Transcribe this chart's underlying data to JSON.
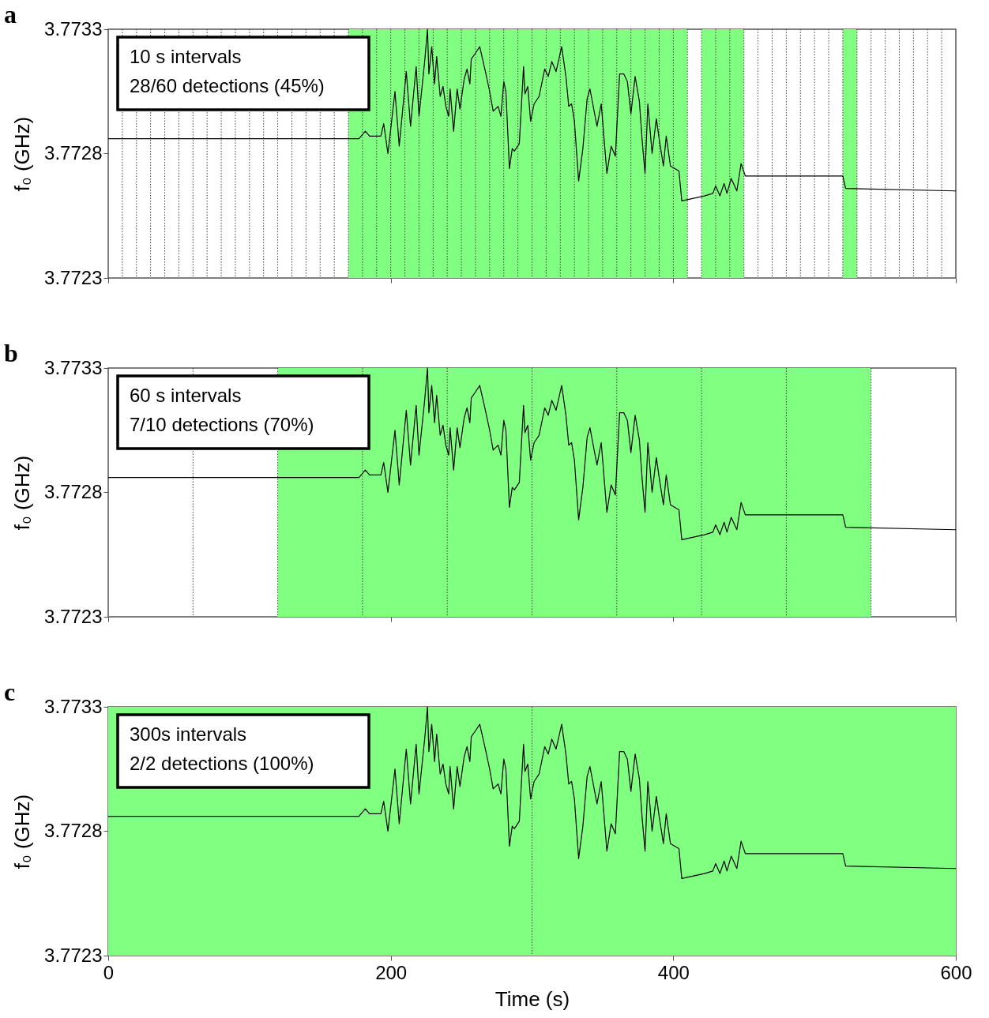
{
  "chart_data": [
    {
      "type": "line",
      "title": "a",
      "ylabel": "f₀ (GHz)",
      "xlabel": null,
      "tick_labels": "y",
      "annotations": [
        "10 s intervals",
        "28/60 detections (45%)"
      ],
      "xlim": [
        0,
        600
      ],
      "xticks": [
        0,
        200,
        400,
        600
      ],
      "ylim": [
        3.7723,
        3.7733
      ],
      "yticks": [
        3.7723,
        3.7728,
        3.7733
      ],
      "x": [
        0,
        60,
        120,
        164,
        177.5,
        182,
        185,
        193,
        195,
        198,
        203,
        206,
        211,
        214,
        218,
        220,
        224,
        226,
        227,
        229,
        231,
        232.5,
        235,
        237,
        239,
        241,
        242,
        244.5,
        247,
        249,
        252,
        254,
        256,
        257,
        259.5,
        263,
        265,
        267,
        270,
        272.5,
        276,
        278,
        280,
        281.5,
        284,
        286,
        287.5,
        291,
        294,
        295,
        297,
        299,
        301.5,
        305,
        309,
        311.5,
        314,
        317,
        321,
        324,
        326,
        328,
        330,
        333,
        336,
        339,
        341,
        343,
        346,
        349,
        353,
        356,
        359,
        362,
        365,
        367.5,
        370,
        373,
        376,
        378,
        380,
        382,
        385,
        388,
        390,
        393,
        395,
        398,
        404,
        406,
        422,
        428,
        430,
        433,
        436,
        438,
        441,
        445,
        448,
        451,
        520,
        522,
        600
      ],
      "series": [
        {
          "color": "#000000",
          "values": [
            3.77286,
            3.77286,
            3.77286,
            3.77286,
            3.77286,
            3.77289,
            3.77287,
            3.77287,
            3.77292,
            3.7728,
            3.77305,
            3.77283,
            3.77313,
            3.77291,
            3.77315,
            3.77295,
            3.77317,
            3.7733,
            3.77312,
            3.77323,
            3.77308,
            3.77319,
            3.77303,
            3.77307,
            3.77299,
            3.77295,
            3.77306,
            3.77289,
            3.77306,
            3.77298,
            3.7731,
            3.77314,
            3.77308,
            3.77318,
            3.7732,
            3.77323,
            3.77318,
            3.77313,
            3.77305,
            3.77297,
            3.77299,
            3.77295,
            3.77309,
            3.77305,
            3.77274,
            3.77282,
            3.77281,
            3.77284,
            3.77315,
            3.77304,
            3.77307,
            3.77293,
            3.773,
            3.77303,
            3.77314,
            3.77311,
            3.77317,
            3.77313,
            3.77323,
            3.77311,
            3.77299,
            3.773,
            3.77293,
            3.77269,
            3.77282,
            3.77302,
            3.77306,
            3.773,
            3.77291,
            3.773,
            3.77272,
            3.77283,
            3.77279,
            3.77312,
            3.77312,
            3.77309,
            3.77296,
            3.77311,
            3.77301,
            3.77285,
            3.77272,
            3.773,
            3.7728,
            3.77294,
            3.77286,
            3.77275,
            3.77287,
            3.77275,
            3.77273,
            3.77261,
            3.77263,
            3.77264,
            3.77267,
            3.77263,
            3.77268,
            3.77264,
            3.7727,
            3.77265,
            3.77276,
            3.77271,
            3.77271,
            3.77266,
            3.77265
          ]
        }
      ],
      "bands": [
        {
          "axis": "x",
          "from": 170,
          "to": 410,
          "color": "#80ff80"
        },
        {
          "axis": "x",
          "from": 420,
          "to": 450,
          "color": "#80ff80"
        },
        {
          "axis": "x",
          "from": 520,
          "to": 530,
          "color": "#80ff80"
        }
      ],
      "ref_lines": [
        {
          "axis": "x",
          "value": 10,
          "color": "#404040",
          "line_style": "dotted"
        },
        {
          "axis": "x",
          "value": 20,
          "color": "#404040",
          "line_style": "dotted"
        },
        {
          "axis": "x",
          "value": 30,
          "color": "#404040",
          "line_style": "dotted"
        },
        {
          "axis": "x",
          "value": 40,
          "color": "#404040",
          "line_style": "dotted"
        },
        {
          "axis": "x",
          "value": 50,
          "color": "#404040",
          "line_style": "dotted"
        },
        {
          "axis": "x",
          "value": 60,
          "color": "#404040",
          "line_style": "dotted"
        },
        {
          "axis": "x",
          "value": 70,
          "color": "#404040",
          "line_style": "dotted"
        },
        {
          "axis": "x",
          "value": 80,
          "color": "#404040",
          "line_style": "dotted"
        },
        {
          "axis": "x",
          "value": 90,
          "color": "#404040",
          "line_style": "dotted"
        },
        {
          "axis": "x",
          "value": 100,
          "color": "#404040",
          "line_style": "dotted"
        },
        {
          "axis": "x",
          "value": 110,
          "color": "#404040",
          "line_style": "dotted"
        },
        {
          "axis": "x",
          "value": 120,
          "color": "#404040",
          "line_style": "dotted"
        },
        {
          "axis": "x",
          "value": 130,
          "color": "#404040",
          "line_style": "dotted"
        },
        {
          "axis": "x",
          "value": 140,
          "color": "#404040",
          "line_style": "dotted"
        },
        {
          "axis": "x",
          "value": 150,
          "color": "#404040",
          "line_style": "dotted"
        },
        {
          "axis": "x",
          "value": 160,
          "color": "#404040",
          "line_style": "dotted"
        },
        {
          "axis": "x",
          "value": 170,
          "color": "#404040",
          "line_style": "dotted"
        },
        {
          "axis": "x",
          "value": 180,
          "color": "#404040",
          "line_style": "dotted"
        },
        {
          "axis": "x",
          "value": 190,
          "color": "#404040",
          "line_style": "dotted"
        },
        {
          "axis": "x",
          "value": 200,
          "color": "#404040",
          "line_style": "dotted"
        },
        {
          "axis": "x",
          "value": 210,
          "color": "#404040",
          "line_style": "dotted"
        },
        {
          "axis": "x",
          "value": 220,
          "color": "#404040",
          "line_style": "dotted"
        },
        {
          "axis": "x",
          "value": 230,
          "color": "#404040",
          "line_style": "dotted"
        },
        {
          "axis": "x",
          "value": 240,
          "color": "#404040",
          "line_style": "dotted"
        },
        {
          "axis": "x",
          "value": 250,
          "color": "#404040",
          "line_style": "dotted"
        },
        {
          "axis": "x",
          "value": 260,
          "color": "#404040",
          "line_style": "dotted"
        },
        {
          "axis": "x",
          "value": 270,
          "color": "#404040",
          "line_style": "dotted"
        },
        {
          "axis": "x",
          "value": 280,
          "color": "#404040",
          "line_style": "dotted"
        },
        {
          "axis": "x",
          "value": 290,
          "color": "#404040",
          "line_style": "dotted"
        },
        {
          "axis": "x",
          "value": 300,
          "color": "#404040",
          "line_style": "dotted"
        },
        {
          "axis": "x",
          "value": 310,
          "color": "#404040",
          "line_style": "dotted"
        },
        {
          "axis": "x",
          "value": 320,
          "color": "#404040",
          "line_style": "dotted"
        },
        {
          "axis": "x",
          "value": 330,
          "color": "#404040",
          "line_style": "dotted"
        },
        {
          "axis": "x",
          "value": 340,
          "color": "#404040",
          "line_style": "dotted"
        },
        {
          "axis": "x",
          "value": 350,
          "color": "#404040",
          "line_style": "dotted"
        },
        {
          "axis": "x",
          "value": 360,
          "color": "#404040",
          "line_style": "dotted"
        },
        {
          "axis": "x",
          "value": 370,
          "color": "#404040",
          "line_style": "dotted"
        },
        {
          "axis": "x",
          "value": 380,
          "color": "#404040",
          "line_style": "dotted"
        },
        {
          "axis": "x",
          "value": 390,
          "color": "#404040",
          "line_style": "dotted"
        },
        {
          "axis": "x",
          "value": 400,
          "color": "#404040",
          "line_style": "dotted"
        },
        {
          "axis": "x",
          "value": 410,
          "color": "#404040",
          "line_style": "dotted"
        },
        {
          "axis": "x",
          "value": 420,
          "color": "#404040",
          "line_style": "dotted"
        },
        {
          "axis": "x",
          "value": 430,
          "color": "#404040",
          "line_style": "dotted"
        },
        {
          "axis": "x",
          "value": 440,
          "color": "#404040",
          "line_style": "dotted"
        },
        {
          "axis": "x",
          "value": 450,
          "color": "#404040",
          "line_style": "dotted"
        },
        {
          "axis": "x",
          "value": 460,
          "color": "#404040",
          "line_style": "dotted"
        },
        {
          "axis": "x",
          "value": 470,
          "color": "#404040",
          "line_style": "dotted"
        },
        {
          "axis": "x",
          "value": 480,
          "color": "#404040",
          "line_style": "dotted"
        },
        {
          "axis": "x",
          "value": 490,
          "color": "#404040",
          "line_style": "dotted"
        },
        {
          "axis": "x",
          "value": 500,
          "color": "#404040",
          "line_style": "dotted"
        },
        {
          "axis": "x",
          "value": 510,
          "color": "#404040",
          "line_style": "dotted"
        },
        {
          "axis": "x",
          "value": 520,
          "color": "#404040",
          "line_style": "dotted"
        },
        {
          "axis": "x",
          "value": 530,
          "color": "#404040",
          "line_style": "dotted"
        },
        {
          "axis": "x",
          "value": 540,
          "color": "#404040",
          "line_style": "dotted"
        },
        {
          "axis": "x",
          "value": 550,
          "color": "#404040",
          "line_style": "dotted"
        },
        {
          "axis": "x",
          "value": 560,
          "color": "#404040",
          "line_style": "dotted"
        },
        {
          "axis": "x",
          "value": 570,
          "color": "#404040",
          "line_style": "dotted"
        },
        {
          "axis": "x",
          "value": 580,
          "color": "#404040",
          "line_style": "dotted"
        },
        {
          "axis": "x",
          "value": 590,
          "color": "#404040",
          "line_style": "dotted"
        }
      ]
    },
    {
      "type": "line",
      "title": "b",
      "ylabel": "f₀ (GHz)",
      "xlabel": null,
      "tick_labels": "y",
      "annotations": [
        "60 s intervals",
        "7/10 detections (70%)"
      ],
      "xlim": [
        0,
        600
      ],
      "xticks": [
        0,
        200,
        400,
        600
      ],
      "ylim": [
        3.7723,
        3.7733
      ],
      "yticks": [
        3.7723,
        3.7728,
        3.7733
      ],
      "x": [
        0,
        60,
        120,
        164,
        177.5,
        182,
        185,
        193,
        195,
        198,
        203,
        206,
        211,
        214,
        218,
        220,
        224,
        226,
        227,
        229,
        231,
        232.5,
        235,
        237,
        239,
        241,
        242,
        244.5,
        247,
        249,
        252,
        254,
        256,
        257,
        259.5,
        263,
        265,
        267,
        270,
        272.5,
        276,
        278,
        280,
        281.5,
        284,
        286,
        287.5,
        291,
        294,
        295,
        297,
        299,
        301.5,
        305,
        309,
        311.5,
        314,
        317,
        321,
        324,
        326,
        328,
        330,
        333,
        336,
        339,
        341,
        343,
        346,
        349,
        353,
        356,
        359,
        362,
        365,
        367.5,
        370,
        373,
        376,
        378,
        380,
        382,
        385,
        388,
        390,
        393,
        395,
        398,
        404,
        406,
        422,
        428,
        430,
        433,
        436,
        438,
        441,
        445,
        448,
        451,
        520,
        522,
        600
      ],
      "series": [
        {
          "color": "#000000",
          "values": [
            3.77286,
            3.77286,
            3.77286,
            3.77286,
            3.77286,
            3.77289,
            3.77287,
            3.77287,
            3.77292,
            3.7728,
            3.77305,
            3.77283,
            3.77313,
            3.77291,
            3.77315,
            3.77295,
            3.77317,
            3.7733,
            3.77312,
            3.77323,
            3.77308,
            3.77319,
            3.77303,
            3.77307,
            3.77299,
            3.77295,
            3.77306,
            3.77289,
            3.77306,
            3.77298,
            3.7731,
            3.77314,
            3.77308,
            3.77318,
            3.7732,
            3.77323,
            3.77318,
            3.77313,
            3.77305,
            3.77297,
            3.77299,
            3.77295,
            3.77309,
            3.77305,
            3.77274,
            3.77282,
            3.77281,
            3.77284,
            3.77315,
            3.77304,
            3.77307,
            3.77293,
            3.773,
            3.77303,
            3.77314,
            3.77311,
            3.77317,
            3.77313,
            3.77323,
            3.77311,
            3.77299,
            3.773,
            3.77293,
            3.77269,
            3.77282,
            3.77302,
            3.77306,
            3.773,
            3.77291,
            3.773,
            3.77272,
            3.77283,
            3.77279,
            3.77312,
            3.77312,
            3.77309,
            3.77296,
            3.77311,
            3.77301,
            3.77285,
            3.77272,
            3.773,
            3.7728,
            3.77294,
            3.77286,
            3.77275,
            3.77287,
            3.77275,
            3.77273,
            3.77261,
            3.77263,
            3.77264,
            3.77267,
            3.77263,
            3.77268,
            3.77264,
            3.7727,
            3.77265,
            3.77276,
            3.77271,
            3.77271,
            3.77266,
            3.77265
          ]
        }
      ],
      "bands": [
        {
          "axis": "x",
          "from": 120,
          "to": 540,
          "color": "#80ff80"
        }
      ],
      "ref_lines": [
        {
          "axis": "x",
          "value": 60,
          "color": "#404040",
          "line_style": "dotted"
        },
        {
          "axis": "x",
          "value": 120,
          "color": "#404040",
          "line_style": "dotted"
        },
        {
          "axis": "x",
          "value": 180,
          "color": "#404040",
          "line_style": "dotted"
        },
        {
          "axis": "x",
          "value": 240,
          "color": "#404040",
          "line_style": "dotted"
        },
        {
          "axis": "x",
          "value": 300,
          "color": "#404040",
          "line_style": "dotted"
        },
        {
          "axis": "x",
          "value": 360,
          "color": "#404040",
          "line_style": "dotted"
        },
        {
          "axis": "x",
          "value": 420,
          "color": "#404040",
          "line_style": "dotted"
        },
        {
          "axis": "x",
          "value": 480,
          "color": "#404040",
          "line_style": "dotted"
        },
        {
          "axis": "x",
          "value": 540,
          "color": "#404040",
          "line_style": "dotted"
        }
      ]
    },
    {
      "type": "line",
      "title": "c",
      "ylabel": "f₀ (GHz)",
      "xlabel": "Time (s)",
      "annotations": [
        "300s intervals",
        "2/2 detections (100%)"
      ],
      "xlim": [
        0,
        600
      ],
      "xticks": [
        0,
        200,
        400,
        600
      ],
      "ylim": [
        3.7723,
        3.7733
      ],
      "yticks": [
        3.7723,
        3.7728,
        3.7733
      ],
      "x": [
        0,
        60,
        120,
        164,
        177.5,
        182,
        185,
        193,
        195,
        198,
        203,
        206,
        211,
        214,
        218,
        220,
        224,
        226,
        227,
        229,
        231,
        232.5,
        235,
        237,
        239,
        241,
        242,
        244.5,
        247,
        249,
        252,
        254,
        256,
        257,
        259.5,
        263,
        265,
        267,
        270,
        272.5,
        276,
        278,
        280,
        281.5,
        284,
        286,
        287.5,
        291,
        294,
        295,
        297,
        299,
        301.5,
        305,
        309,
        311.5,
        314,
        317,
        321,
        324,
        326,
        328,
        330,
        333,
        336,
        339,
        341,
        343,
        346,
        349,
        353,
        356,
        359,
        362,
        365,
        367.5,
        370,
        373,
        376,
        378,
        380,
        382,
        385,
        388,
        390,
        393,
        395,
        398,
        404,
        406,
        422,
        428,
        430,
        433,
        436,
        438,
        441,
        445,
        448,
        451,
        520,
        522,
        600
      ],
      "series": [
        {
          "color": "#000000",
          "values": [
            3.77286,
            3.77286,
            3.77286,
            3.77286,
            3.77286,
            3.77289,
            3.77287,
            3.77287,
            3.77292,
            3.7728,
            3.77305,
            3.77283,
            3.77313,
            3.77291,
            3.77315,
            3.77295,
            3.77317,
            3.7733,
            3.77312,
            3.77323,
            3.77308,
            3.77319,
            3.77303,
            3.77307,
            3.77299,
            3.77295,
            3.77306,
            3.77289,
            3.77306,
            3.77298,
            3.7731,
            3.77314,
            3.77308,
            3.77318,
            3.7732,
            3.77323,
            3.77318,
            3.77313,
            3.77305,
            3.77297,
            3.77299,
            3.77295,
            3.77309,
            3.77305,
            3.77274,
            3.77282,
            3.77281,
            3.77284,
            3.77315,
            3.77304,
            3.77307,
            3.77293,
            3.773,
            3.77303,
            3.77314,
            3.77311,
            3.77317,
            3.77313,
            3.77323,
            3.77311,
            3.77299,
            3.773,
            3.77293,
            3.77269,
            3.77282,
            3.77302,
            3.77306,
            3.773,
            3.77291,
            3.773,
            3.77272,
            3.77283,
            3.77279,
            3.77312,
            3.77312,
            3.77309,
            3.77296,
            3.77311,
            3.77301,
            3.77285,
            3.77272,
            3.773,
            3.7728,
            3.77294,
            3.77286,
            3.77275,
            3.77287,
            3.77275,
            3.77273,
            3.77261,
            3.77263,
            3.77264,
            3.77267,
            3.77263,
            3.77268,
            3.77264,
            3.7727,
            3.77265,
            3.77276,
            3.77271,
            3.77271,
            3.77266,
            3.77265
          ]
        }
      ],
      "bands": [
        {
          "axis": "x",
          "from": 0,
          "to": 600,
          "color": "#80ff80"
        }
      ],
      "ref_lines": [
        {
          "axis": "x",
          "value": 300,
          "color": "#404040",
          "line_style": "dotted"
        }
      ]
    }
  ]
}
